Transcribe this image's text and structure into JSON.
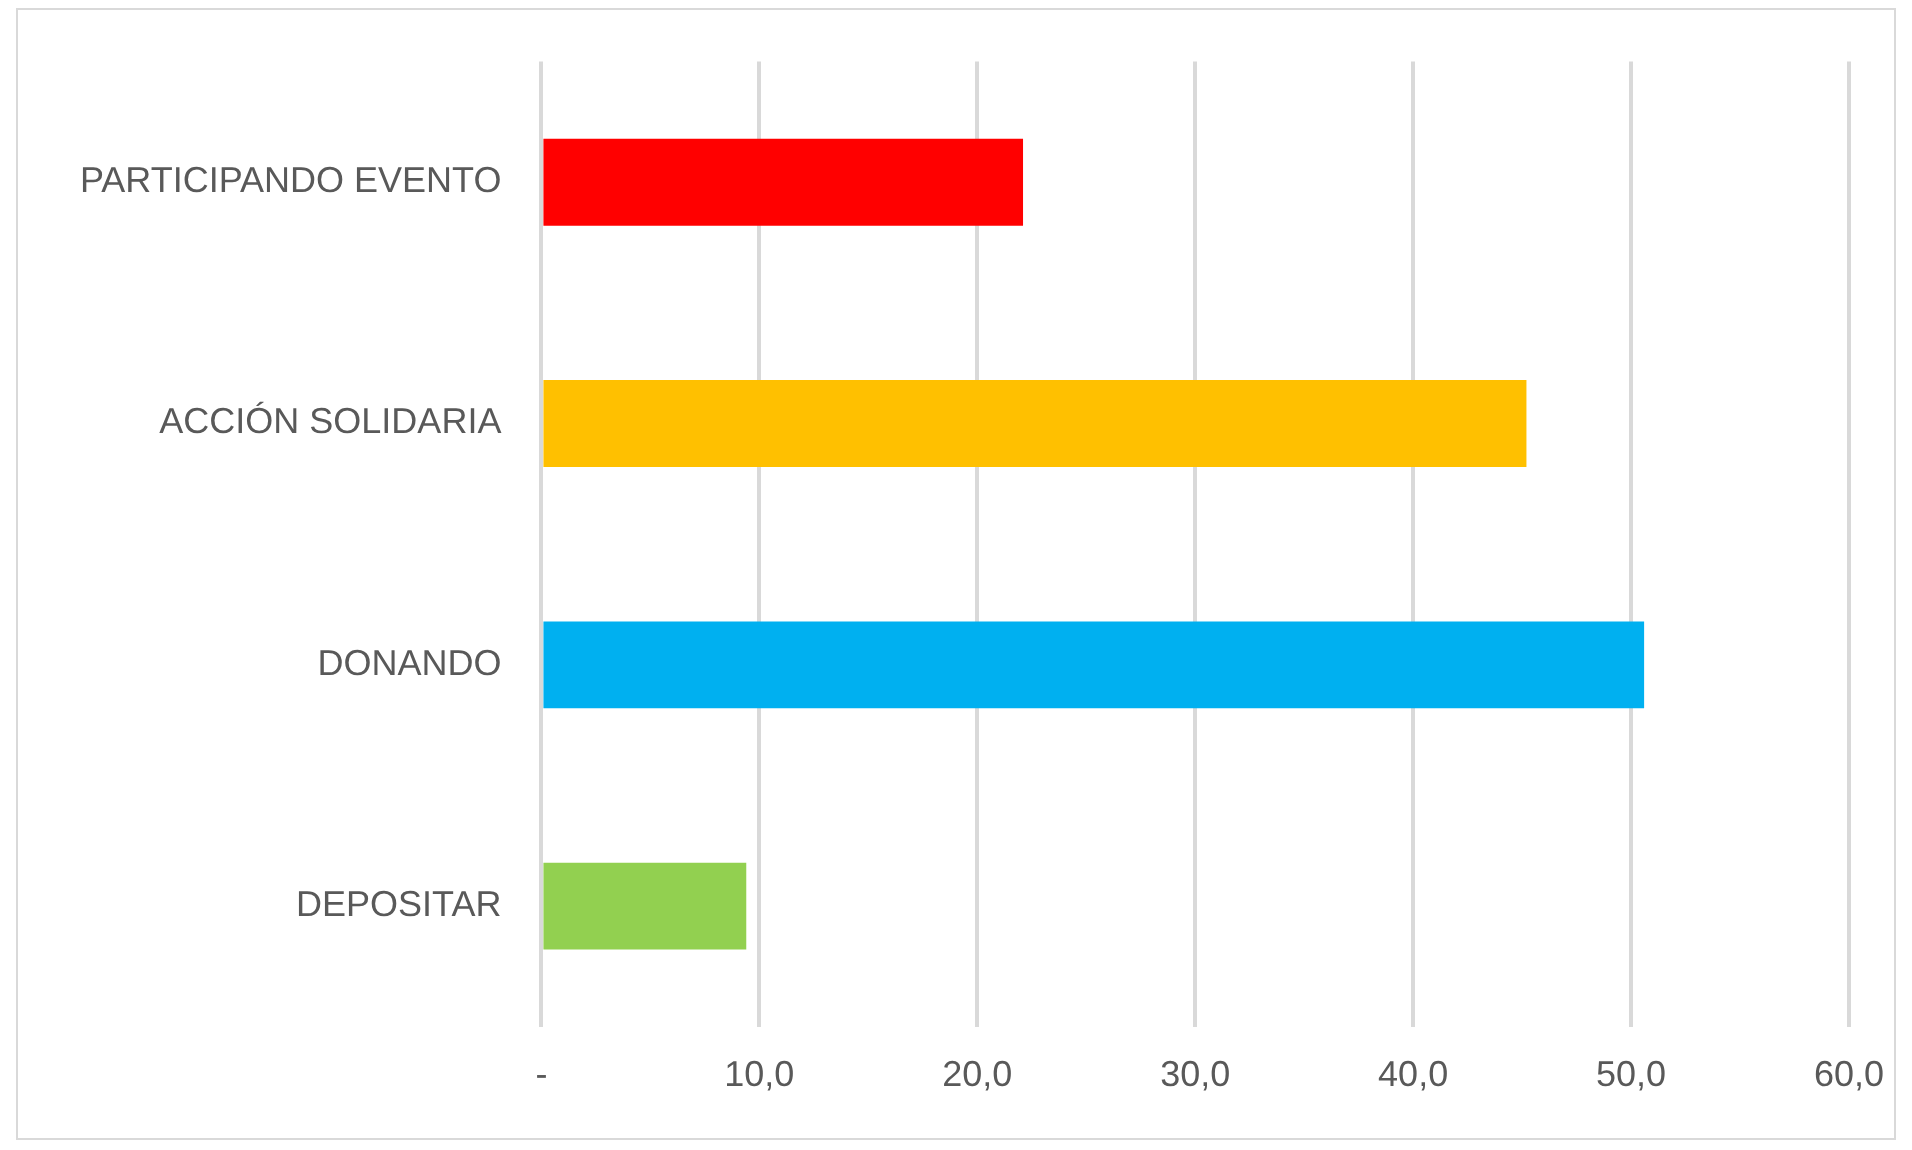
{
  "chart_data": {
    "type": "bar",
    "orientation": "horizontal",
    "categories": [
      "PARTICIPANDO EVENTO",
      "ACCIÓN SOLIDARIA",
      "DONANDO",
      "DEPOSITAR"
    ],
    "values": [
      22.1,
      45.2,
      50.6,
      9.4
    ],
    "colors": [
      "#ff0000",
      "#ffc000",
      "#00b0f0",
      "#92d050"
    ],
    "xlim": [
      0,
      60
    ],
    "xticks": [
      {
        "value": 0,
        "label": "-"
      },
      {
        "value": 10,
        "label": "10,0"
      },
      {
        "value": 20,
        "label": "20,0"
      },
      {
        "value": 30,
        "label": "30,0"
      },
      {
        "value": 40,
        "label": "40,0"
      },
      {
        "value": 50,
        "label": "50,0"
      },
      {
        "value": 60,
        "label": "60,0"
      }
    ],
    "grid": "x",
    "legend": false
  }
}
